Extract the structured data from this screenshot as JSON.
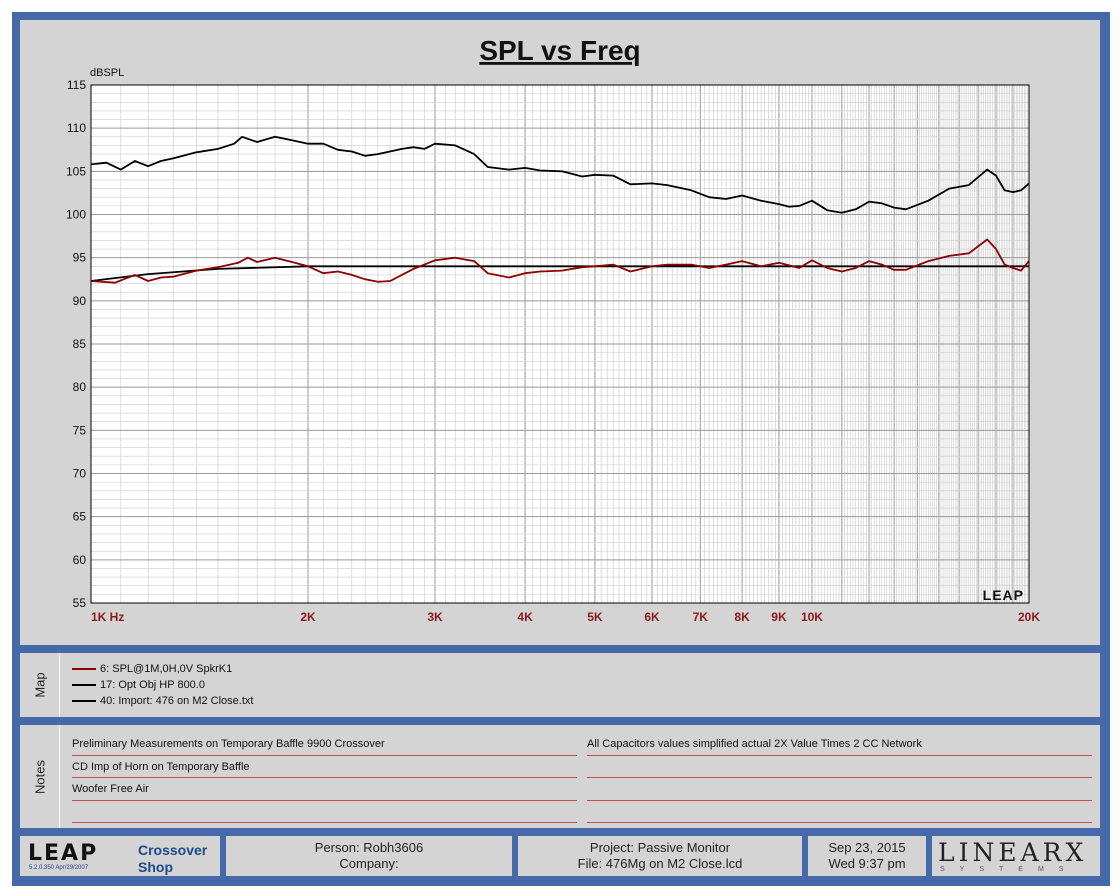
{
  "chart_data": {
    "type": "line",
    "title": "SPL vs Freq",
    "ylabel": "dBSPL",
    "xscale": "log",
    "xlim": [
      1000,
      20000
    ],
    "ylim": [
      55,
      115
    ],
    "y_ticks": [
      115,
      110,
      105,
      100,
      95,
      90,
      85,
      80,
      75,
      70,
      65,
      60,
      55
    ],
    "x_ticks": [
      {
        "value": 1000,
        "label": "1K  Hz"
      },
      {
        "value": 2000,
        "label": "2K"
      },
      {
        "value": 3000,
        "label": "3K"
      },
      {
        "value": 4000,
        "label": "4K"
      },
      {
        "value": 5000,
        "label": "5K"
      },
      {
        "value": 6000,
        "label": "6K"
      },
      {
        "value": 7000,
        "label": "7K"
      },
      {
        "value": 8000,
        "label": "8K"
      },
      {
        "value": 9000,
        "label": "9K"
      },
      {
        "value": 10000,
        "label": "10K"
      },
      {
        "value": 20000,
        "label": "20K"
      }
    ],
    "grid": true,
    "watermark": "LEAP",
    "series": [
      {
        "color": "#000000",
        "points": [
          [
            1000,
            105.8
          ],
          [
            1050,
            106
          ],
          [
            1100,
            105.2
          ],
          [
            1150,
            106.2
          ],
          [
            1200,
            105.6
          ],
          [
            1250,
            106.2
          ],
          [
            1300,
            106.5
          ],
          [
            1400,
            107.2
          ],
          [
            1500,
            107.6
          ],
          [
            1580,
            108.2
          ],
          [
            1620,
            109
          ],
          [
            1700,
            108.4
          ],
          [
            1800,
            109
          ],
          [
            1900,
            108.6
          ],
          [
            2000,
            108.2
          ],
          [
            2100,
            108.2
          ],
          [
            2200,
            107.5
          ],
          [
            2300,
            107.3
          ],
          [
            2400,
            106.8
          ],
          [
            2500,
            107
          ],
          [
            2700,
            107.6
          ],
          [
            2800,
            107.8
          ],
          [
            2900,
            107.6
          ],
          [
            3000,
            108.2
          ],
          [
            3200,
            108
          ],
          [
            3400,
            107
          ],
          [
            3550,
            105.5
          ],
          [
            3800,
            105.2
          ],
          [
            4000,
            105.4
          ],
          [
            4200,
            105.1
          ],
          [
            4500,
            105
          ],
          [
            4800,
            104.4
          ],
          [
            5000,
            104.6
          ],
          [
            5300,
            104.5
          ],
          [
            5600,
            103.5
          ],
          [
            6000,
            103.6
          ],
          [
            6300,
            103.4
          ],
          [
            6800,
            102.8
          ],
          [
            7200,
            102
          ],
          [
            7600,
            101.8
          ],
          [
            8000,
            102.2
          ],
          [
            8500,
            101.6
          ],
          [
            9000,
            101.2
          ],
          [
            9300,
            100.9
          ],
          [
            9600,
            101
          ],
          [
            10000,
            101.6
          ],
          [
            10500,
            100.5
          ],
          [
            11000,
            100.2
          ],
          [
            11500,
            100.6
          ],
          [
            12000,
            101.5
          ],
          [
            12500,
            101.3
          ],
          [
            13000,
            100.8
          ],
          [
            13500,
            100.6
          ],
          [
            14500,
            101.6
          ],
          [
            15500,
            103
          ],
          [
            16500,
            103.4
          ],
          [
            17500,
            105.2
          ],
          [
            18000,
            104.5
          ],
          [
            18500,
            102.8
          ],
          [
            19000,
            102.6
          ],
          [
            19500,
            102.8
          ],
          [
            20000,
            103.6
          ]
        ]
      },
      {
        "color": "#000000",
        "points": [
          [
            1000,
            92.3
          ],
          [
            1200,
            93.1
          ],
          [
            1500,
            93.7
          ],
          [
            2000,
            94
          ],
          [
            3000,
            94
          ],
          [
            5000,
            94
          ],
          [
            8000,
            94
          ],
          [
            12000,
            94
          ],
          [
            20000,
            94
          ]
        ]
      },
      {
        "color": "#8b0000",
        "points": [
          [
            1000,
            92.3
          ],
          [
            1080,
            92.1
          ],
          [
            1150,
            93
          ],
          [
            1200,
            92.3
          ],
          [
            1250,
            92.7
          ],
          [
            1300,
            92.8
          ],
          [
            1400,
            93.5
          ],
          [
            1500,
            93.9
          ],
          [
            1600,
            94.4
          ],
          [
            1650,
            95
          ],
          [
            1700,
            94.5
          ],
          [
            1800,
            95
          ],
          [
            1900,
            94.5
          ],
          [
            2000,
            94
          ],
          [
            2100,
            93.2
          ],
          [
            2200,
            93.4
          ],
          [
            2300,
            93
          ],
          [
            2400,
            92.5
          ],
          [
            2500,
            92.2
          ],
          [
            2600,
            92.3
          ],
          [
            2800,
            93.7
          ],
          [
            3000,
            94.7
          ],
          [
            3200,
            95
          ],
          [
            3400,
            94.6
          ],
          [
            3550,
            93.2
          ],
          [
            3800,
            92.7
          ],
          [
            4000,
            93.2
          ],
          [
            4200,
            93.4
          ],
          [
            4500,
            93.5
          ],
          [
            4800,
            93.9
          ],
          [
            5000,
            94
          ],
          [
            5300,
            94.2
          ],
          [
            5600,
            93.4
          ],
          [
            6000,
            94
          ],
          [
            6300,
            94.2
          ],
          [
            6800,
            94.2
          ],
          [
            7200,
            93.8
          ],
          [
            7600,
            94.2
          ],
          [
            8000,
            94.6
          ],
          [
            8500,
            94
          ],
          [
            9000,
            94.4
          ],
          [
            9300,
            94.1
          ],
          [
            9600,
            93.8
          ],
          [
            10000,
            94.7
          ],
          [
            10500,
            93.8
          ],
          [
            11000,
            93.4
          ],
          [
            11500,
            93.8
          ],
          [
            12000,
            94.6
          ],
          [
            12500,
            94.2
          ],
          [
            13000,
            93.6
          ],
          [
            13500,
            93.6
          ],
          [
            14500,
            94.6
          ],
          [
            15500,
            95.2
          ],
          [
            16500,
            95.5
          ],
          [
            17500,
            97.1
          ],
          [
            18000,
            96
          ],
          [
            18500,
            94.2
          ],
          [
            19000,
            93.8
          ],
          [
            19500,
            93.5
          ],
          [
            20000,
            94.6
          ]
        ]
      }
    ]
  },
  "map": {
    "label": "Map",
    "items": [
      {
        "label": "6: SPL@1M,0H,0V SpkrK1",
        "color": "#8b0000"
      },
      {
        "label": "17: Opt Obj HP  800.0",
        "color": "#000000"
      },
      {
        "label": "40: Import: 476 on M2 Close.txt",
        "color": "#000000"
      }
    ]
  },
  "notes": {
    "label": "Notes",
    "left": [
      "Preliminary Measurements on Temporary Baffle  9900 Crossover",
      "CD Imp of Horn on Temporary Baffle",
      "Woofer Free Air",
      ""
    ],
    "right": [
      "All Capacitors values simplified actual 2X Value Times 2 CC Network",
      "",
      "",
      ""
    ]
  },
  "footer": {
    "logo": "LEAP",
    "version": "5.2.0.350   Apr/29/2007",
    "app_line1": "Crossover",
    "app_line2": "Shop",
    "person": "Person: Robh3606",
    "company": "Company:",
    "project": "Project: Passive Monitor",
    "file": "File: 476Mg on M2 Close.lcd",
    "date": "Sep 23, 2015",
    "time": "Wed  9:37 pm",
    "brand": "LINEARX",
    "brand_sub": "SYSTEMS"
  }
}
